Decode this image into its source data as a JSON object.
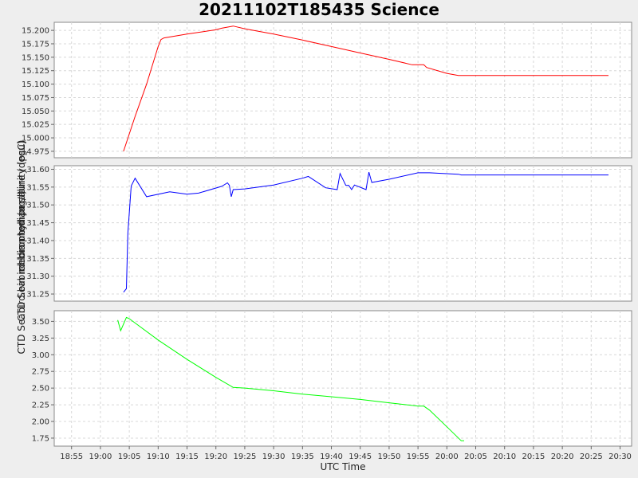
{
  "chart_data": {
    "type": "line",
    "title": "20211102T185435 Science",
    "xlabel": "UTC Time",
    "xlim": [
      "18:52",
      "20:32"
    ],
    "x_tick_labels": [
      "18:55",
      "19:00",
      "19:05",
      "19:10",
      "19:15",
      "19:20",
      "19:25",
      "19:30",
      "19:35",
      "19:40",
      "19:45",
      "19:50",
      "19:55",
      "20:00",
      "20:05",
      "20:10",
      "20:15",
      "20:20",
      "20:25",
      "20:30"
    ],
    "grid": true,
    "panels": [
      {
        "ylabel": "CTD Seabird.bin median temperature (degC)",
        "ylim": [
          14.963,
          15.215
        ],
        "y_ticks": [
          "14.975",
          "15.000",
          "15.025",
          "15.050",
          "15.075",
          "15.100",
          "15.125",
          "15.150",
          "15.175",
          "15.200"
        ],
        "color": "#ff0000",
        "points": [
          [
            "19:04",
            14.975
          ],
          [
            "19:06",
            15.04
          ],
          [
            "19:08",
            15.1
          ],
          [
            "19:10",
            15.17
          ],
          [
            "19:10:30",
            15.183
          ],
          [
            "19:11",
            15.186
          ],
          [
            "19:15",
            15.193
          ],
          [
            "19:20",
            15.201
          ],
          [
            "19:21",
            15.204
          ],
          [
            "19:23",
            15.208
          ],
          [
            "19:25",
            15.203
          ],
          [
            "19:30",
            15.193
          ],
          [
            "19:35",
            15.182
          ],
          [
            "19:40",
            15.17
          ],
          [
            "19:45",
            15.158
          ],
          [
            "19:50",
            15.146
          ],
          [
            "19:54",
            15.136
          ],
          [
            "19:56",
            15.136
          ],
          [
            "19:56:30",
            15.131
          ],
          [
            "20:00",
            15.12
          ],
          [
            "20:02",
            15.116
          ],
          [
            "20:10",
            15.116
          ],
          [
            "20:20",
            15.116
          ],
          [
            "20:28",
            15.116
          ]
        ]
      },
      {
        "ylabel": "CTD Seabird.bin median salinity (psu)",
        "ylim": [
          31.23,
          31.61
        ],
        "y_ticks": [
          "31.25",
          "31.30",
          "31.35",
          "31.40",
          "31.45",
          "31.50",
          "31.55",
          "31.60"
        ],
        "color": "#0000ff",
        "points": [
          [
            "19:04",
            31.255
          ],
          [
            "19:04:30",
            31.265
          ],
          [
            "19:04:45",
            31.42
          ],
          [
            "19:05:20",
            31.553
          ],
          [
            "19:06",
            31.575
          ],
          [
            "19:08",
            31.523
          ],
          [
            "19:12",
            31.537
          ],
          [
            "19:15",
            31.53
          ],
          [
            "19:17",
            31.533
          ],
          [
            "19:21",
            31.552
          ],
          [
            "19:22",
            31.562
          ],
          [
            "19:22:20",
            31.555
          ],
          [
            "19:22:40",
            31.523
          ],
          [
            "19:23",
            31.543
          ],
          [
            "19:25",
            31.545
          ],
          [
            "19:30",
            31.556
          ],
          [
            "19:35",
            31.575
          ],
          [
            "19:36",
            31.58
          ],
          [
            "19:39",
            31.548
          ],
          [
            "19:41",
            31.543
          ],
          [
            "19:41:30",
            31.588
          ],
          [
            "19:42:30",
            31.555
          ],
          [
            "19:43",
            31.555
          ],
          [
            "19:43:30",
            31.543
          ],
          [
            "19:44",
            31.556
          ],
          [
            "19:46",
            31.543
          ],
          [
            "19:46:30",
            31.592
          ],
          [
            "19:47",
            31.563
          ],
          [
            "19:50",
            31.572
          ],
          [
            "19:55",
            31.59
          ],
          [
            "19:57",
            31.59
          ],
          [
            "20:02",
            31.586
          ],
          [
            "20:02:30",
            31.584
          ],
          [
            "20:10",
            31.584
          ],
          [
            "20:20",
            31.584
          ],
          [
            "20:28",
            31.584
          ]
        ]
      },
      {
        "ylabel": "chlorophyll (ug/l)",
        "ylim": [
          1.63,
          3.66
        ],
        "y_ticks": [
          "1.75",
          "2.00",
          "2.25",
          "2.50",
          "2.75",
          "3.00",
          "3.25",
          "3.50"
        ],
        "color": "#00ff00",
        "points": [
          [
            "19:03",
            3.52
          ],
          [
            "19:03:30",
            3.36
          ],
          [
            "19:04:30",
            3.56
          ],
          [
            "19:05",
            3.54
          ],
          [
            "19:10",
            3.22
          ],
          [
            "19:15",
            2.93
          ],
          [
            "19:20",
            2.66
          ],
          [
            "19:23",
            2.51
          ],
          [
            "19:25",
            2.5
          ],
          [
            "19:30",
            2.46
          ],
          [
            "19:35",
            2.41
          ],
          [
            "19:40",
            2.37
          ],
          [
            "19:45",
            2.33
          ],
          [
            "19:50",
            2.28
          ],
          [
            "19:55",
            2.23
          ],
          [
            "19:56",
            2.23
          ],
          [
            "19:57",
            2.17
          ],
          [
            "20:00",
            1.92
          ],
          [
            "20:02:30",
            1.71
          ],
          [
            "20:03",
            1.71
          ]
        ]
      }
    ]
  }
}
